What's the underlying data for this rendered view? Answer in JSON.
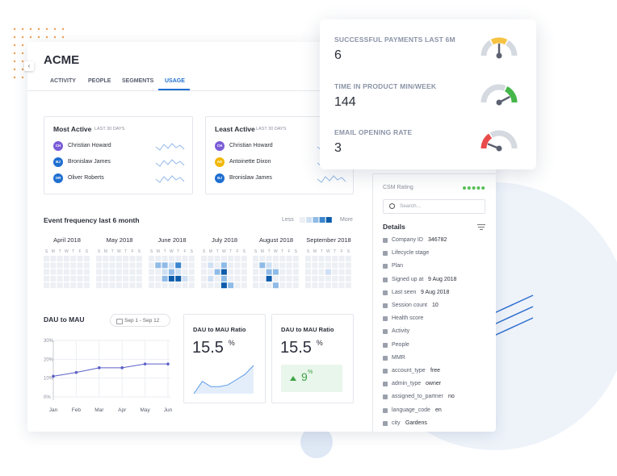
{
  "app": {
    "title": "ACME",
    "tabs": [
      "ACTIVITY",
      "PEOPLE",
      "SEGMENTS",
      "USAGE"
    ]
  },
  "most_active": {
    "title": "Most Active",
    "period": "LAST 30 DAYS",
    "people": [
      {
        "initials": "CH",
        "name": "Christian Howard",
        "color": "#7b5cd6"
      },
      {
        "initials": "BJ",
        "name": "Bronislaw James",
        "color": "#1f6fd0"
      },
      {
        "initials": "OR",
        "name": "Oliver Roberts",
        "color": "#1f6fd0"
      }
    ]
  },
  "least_active": {
    "title": "Least Active",
    "period": "LAST 30 DAYS",
    "people": [
      {
        "initials": "CH",
        "name": "Christian Howard",
        "color": "#7b5cd6"
      },
      {
        "initials": "AD",
        "name": "Antoinette Dixon",
        "color": "#f2b705"
      },
      {
        "initials": "BJ",
        "name": "Bronislaw James",
        "color": "#1f6fd0"
      }
    ]
  },
  "event_frequency": {
    "title": "Event frequency last 6 month",
    "legend_less": "Less",
    "legend_more": "More",
    "level_colors": [
      "#eceff4",
      "#cfe0f3",
      "#8fbbe6",
      "#3c86cf",
      "#0d5cab"
    ],
    "weekdays": [
      "S",
      "M",
      "T",
      "W",
      "T",
      "F",
      "S"
    ],
    "months": [
      {
        "name": "April 2018",
        "levels": [
          [
            0,
            0,
            0,
            0,
            0,
            0,
            0
          ],
          [
            0,
            0,
            0,
            0,
            0,
            0,
            0
          ],
          [
            0,
            0,
            0,
            0,
            0,
            0,
            0
          ],
          [
            0,
            0,
            0,
            0,
            0,
            0,
            0
          ],
          [
            0,
            0,
            0,
            0,
            0,
            0,
            0
          ]
        ]
      },
      {
        "name": "May 2018",
        "levels": [
          [
            0,
            0,
            0,
            0,
            0,
            0,
            0
          ],
          [
            0,
            0,
            0,
            0,
            0,
            0,
            0
          ],
          [
            0,
            0,
            0,
            0,
            0,
            0,
            0
          ],
          [
            0,
            0,
            0,
            0,
            0,
            0,
            0
          ],
          [
            0,
            0,
            0,
            0,
            0,
            0,
            0
          ]
        ]
      },
      {
        "name": "June 2018",
        "levels": [
          [
            0,
            0,
            0,
            0,
            0,
            0,
            0
          ],
          [
            0,
            2,
            2,
            1,
            3,
            0,
            0
          ],
          [
            0,
            0,
            1,
            2,
            1,
            0,
            0
          ],
          [
            0,
            0,
            2,
            4,
            4,
            1,
            0
          ],
          [
            0,
            0,
            0,
            0,
            0,
            0,
            0
          ]
        ]
      },
      {
        "name": "July 2018",
        "levels": [
          [
            0,
            0,
            0,
            0,
            0,
            0,
            0
          ],
          [
            0,
            1,
            0,
            2,
            0,
            0,
            0
          ],
          [
            0,
            0,
            2,
            4,
            0,
            0,
            0
          ],
          [
            0,
            1,
            0,
            2,
            0,
            0,
            0
          ],
          [
            0,
            0,
            0,
            4,
            2,
            0,
            0
          ]
        ]
      },
      {
        "name": "August 2018",
        "levels": [
          [
            0,
            0,
            0,
            0,
            0,
            0,
            0
          ],
          [
            0,
            2,
            1,
            0,
            0,
            0,
            0
          ],
          [
            0,
            0,
            2,
            2,
            0,
            0,
            0
          ],
          [
            0,
            0,
            4,
            0,
            0,
            0,
            0
          ],
          [
            0,
            0,
            0,
            2,
            0,
            0,
            0
          ]
        ]
      },
      {
        "name": "September 2018",
        "levels": [
          [
            0,
            0,
            0,
            0,
            0,
            0,
            0
          ],
          [
            0,
            0,
            0,
            0,
            0,
            0,
            0
          ],
          [
            0,
            0,
            0,
            1,
            0,
            0,
            0
          ],
          [
            0,
            0,
            0,
            0,
            0,
            0,
            0
          ],
          [
            0,
            0,
            0,
            0,
            0,
            0,
            0
          ]
        ]
      }
    ]
  },
  "chart_data": {
    "type": "line",
    "title": "DAU to MAU",
    "date_range": "Sep 1 - Sep 12",
    "categories": [
      "Jan",
      "Feb",
      "Mar",
      "Apr",
      "May",
      "Jun"
    ],
    "values": [
      11,
      13,
      15.5,
      15.5,
      17.5,
      17.5
    ],
    "color": "#5b5fc7",
    "ylim": [
      0,
      30
    ],
    "yticks": [
      {
        "value": 0,
        "label": "0%"
      },
      {
        "value": 10,
        "label": "10%"
      },
      {
        "value": 20,
        "label": "20%"
      },
      {
        "value": 30,
        "label": "30%"
      }
    ],
    "grid": true
  },
  "ratio_cards": [
    {
      "title": "DAU to MAU Ratio",
      "value": 15.5,
      "unit": "%",
      "sparkline": [
        0,
        7,
        4,
        4,
        5,
        8,
        11,
        16
      ]
    },
    {
      "title": "DAU to MAU Ratio",
      "value": 15.5,
      "unit": "%",
      "change": 9,
      "change_unit": "%"
    }
  ],
  "metrics": [
    {
      "label": "SUCCESSFUL PAYMENTS LAST 6M",
      "value": 6
    },
    {
      "label": "TIME IN PRODUCT MIN/WEEK",
      "value": 144
    },
    {
      "label": "EMAIL OPENING RATE",
      "value": 3
    }
  ],
  "sidebar": {
    "csm_label": "CSM Rating",
    "search_placeholder": "Search...",
    "details_title": "Details",
    "rows": [
      {
        "label": "Company ID",
        "value": "346782"
      },
      {
        "label": "Lifecycle stage"
      },
      {
        "label": "Plan"
      },
      {
        "label": "Signed up at",
        "value": "9 Aug 2018"
      },
      {
        "label": "Last seen",
        "value": "9 Aug 2018"
      },
      {
        "label": "Session count",
        "value": 10
      },
      {
        "label": "Health score"
      },
      {
        "label": "Activity"
      },
      {
        "label": "People"
      },
      {
        "label": "MMR"
      },
      {
        "label": "account_type",
        "value": "free"
      },
      {
        "label": "admin_type",
        "value": "owner"
      },
      {
        "label": "assigned_to_partner",
        "value": "no"
      },
      {
        "label": "language_code",
        "value": "en"
      },
      {
        "label": "city",
        "value": "Gardens"
      }
    ]
  }
}
